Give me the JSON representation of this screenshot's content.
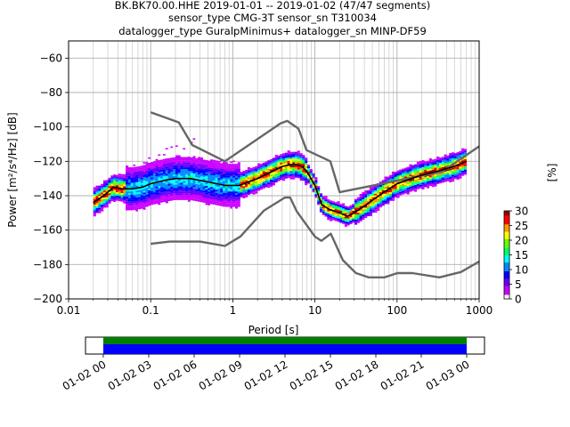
{
  "title_lines": [
    "BK.BK70.00.HHE   2019-01-01 -- 2019-01-02  (47/47 segments)",
    "sensor_type CMG-3T sensor_sn T310034",
    "datalogger_type GuralpMinimus+ datalogger_sn MINP-DF59"
  ],
  "chart_data": {
    "type": "heatmap",
    "xlabel": "Period [s]",
    "ylabel": "Power [m²/s⁴/Hz] [dB]",
    "x_scale": "log",
    "xlim": [
      0.01,
      1000
    ],
    "ylim": [
      -200,
      -50
    ],
    "x_ticks": [
      0.01,
      0.1,
      1,
      10,
      100,
      1000
    ],
    "x_tick_labels": [
      "0.01",
      "0.1",
      "1",
      "10",
      "100",
      "1000"
    ],
    "y_ticks": [
      -200,
      -180,
      -160,
      -140,
      -120,
      -100,
      -80,
      -60
    ],
    "y_tick_labels": [
      "−200",
      "−180",
      "−160",
      "−140",
      "−120",
      "−100",
      "−80",
      "−60"
    ],
    "grid": true,
    "colorbar": {
      "label": "[%]",
      "min": 0,
      "max": 30,
      "ticks": [
        0,
        5,
        10,
        15,
        20,
        25,
        30
      ],
      "tick_labels": [
        "0",
        "5",
        "10",
        "15",
        "20",
        "25",
        "30"
      ],
      "colormap": [
        "#ffffff",
        "#cc00ff",
        "#6600ff",
        "#0000ff",
        "#0088ff",
        "#00ffff",
        "#00ff66",
        "#66ff00",
        "#ffff00",
        "#ff9900",
        "#ff0000",
        "#990000"
      ]
    },
    "series": [
      {
        "name": "",
        "role": "new_high_noise_model",
        "color": "#666666",
        "x": [
          0.1,
          0.22,
          0.32,
          0.8,
          3.8,
          4.6,
          6.3,
          7.9,
          15.4,
          20,
          354.8,
          1000
        ],
        "y": [
          -91.5,
          -97.4,
          -110.5,
          -120,
          -98,
          -96.5,
          -101,
          -113.5,
          -120,
          -138,
          -126,
          -111.3
        ]
      },
      {
        "name": "",
        "role": "new_low_noise_model",
        "color": "#666666",
        "x": [
          0.1,
          0.17,
          0.4,
          0.8,
          1.24,
          2.4,
          4.3,
          5,
          6,
          10,
          12,
          15.6,
          21.9,
          31.6,
          45,
          70,
          101,
          154,
          328,
          600,
          1000
        ],
        "y": [
          -168,
          -166.7,
          -166.7,
          -169.2,
          -163.7,
          -148.6,
          -141.1,
          -141.1,
          -149,
          -163.8,
          -166.2,
          -162.1,
          -177.5,
          -185,
          -187.5,
          -187.5,
          -185,
          -185,
          -187.5,
          -184.4,
          -178.3
        ]
      },
      {
        "name": "",
        "role": "mode",
        "color": "#000000",
        "x": [
          0.02,
          0.025,
          0.03,
          0.035,
          0.045,
          0.06,
          0.08,
          0.1,
          0.15,
          0.2,
          0.3,
          0.5,
          0.8,
          1.2,
          2,
          3,
          4,
          5,
          6,
          7,
          8,
          10,
          12,
          15,
          20,
          25,
          30,
          40,
          60,
          80,
          100,
          150,
          200,
          300,
          500,
          700
        ],
        "y": [
          -144,
          -141,
          -138,
          -135,
          -136,
          -136,
          -135,
          -133,
          -131,
          -130,
          -130,
          -132,
          -134,
          -134,
          -130,
          -126,
          -123,
          -122,
          -122,
          -123,
          -126,
          -134,
          -145,
          -148,
          -150,
          -152,
          -150,
          -146,
          -140,
          -136,
          -133,
          -130,
          -128,
          -126,
          -123,
          -120
        ]
      }
    ],
    "annotations": []
  },
  "data_availability": {
    "type": "bar",
    "x_tick_labels": [
      "01-02 00",
      "01-02 03",
      "01-02 06",
      "01-02 09",
      "01-02 12",
      "01-02 15",
      "01-02 18",
      "01-02 21",
      "01-03 00"
    ],
    "coverage_start_fraction": 0.0,
    "coverage_end_fraction": 1.0,
    "bar_colors": [
      "#008000",
      "#0000ff"
    ]
  }
}
